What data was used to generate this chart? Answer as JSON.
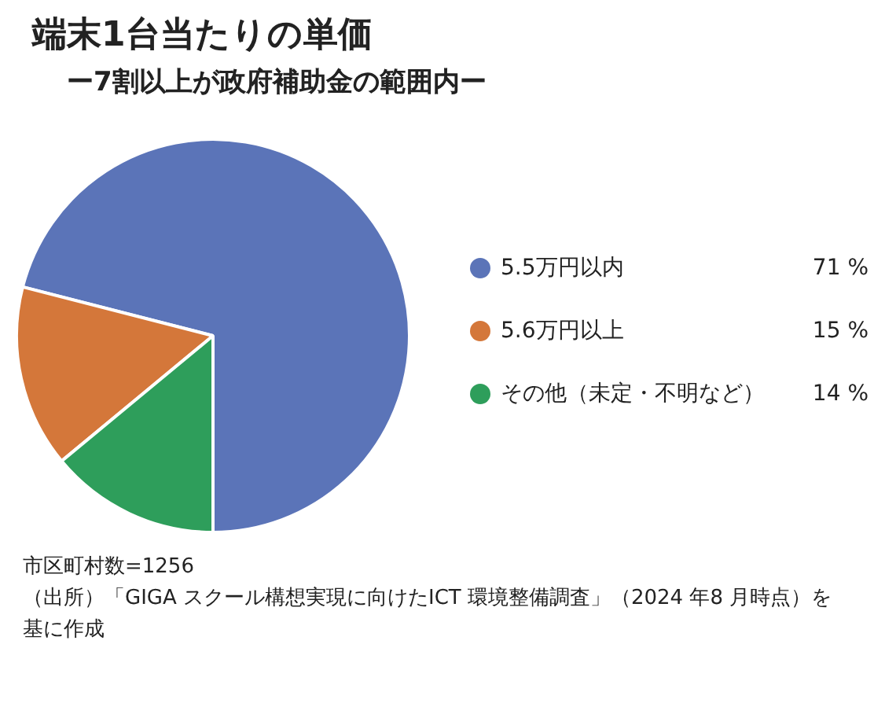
{
  "chart_data": {
    "type": "pie",
    "title": "端末1台当たりの単価",
    "subtitle": "ー7割以上が政府補助金の範囲内ー",
    "categories": [
      "5.5万円以内",
      "5.6万円以上",
      "その他（未定・不明など）"
    ],
    "values": [
      71,
      15,
      14
    ],
    "colors": [
      "#5b74b8",
      "#d4773a",
      "#2e9e5b"
    ],
    "value_labels": [
      "71 %",
      "15 %",
      "14 %"
    ],
    "legend": "right",
    "annotations": [
      "市区町村数=1256",
      "（出所）「GIGA スクール構想実現に向けたICT 環境整備調査」（2024 年8 月時点）を基に作成"
    ]
  }
}
